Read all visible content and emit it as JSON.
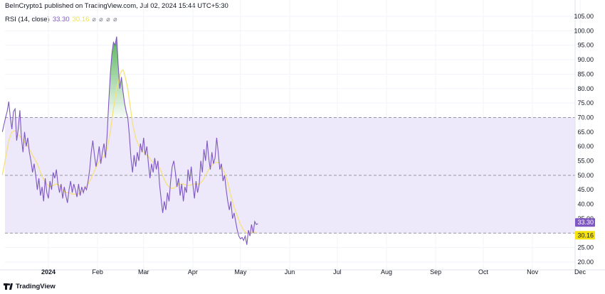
{
  "header": {
    "publisher_line": "BeInCrypto1 published on TradingView.com, Jul 02, 2024 15:44 UTC+5:30",
    "indicator_name": "RSI (14, close)",
    "rsi_value": "33.30",
    "ma_value": "30.16",
    "visibility_icons": "⌀ ⌀ ⌀ ⌀"
  },
  "footer": {
    "brand": "TradingView"
  },
  "colors": {
    "rsi_line": "#7e57c2",
    "ma_line": "#f7e17a",
    "band_fill": "#ede8fa",
    "overbought_fill": "#4caf50",
    "rsi_badge": "#7e57c2",
    "ma_badge": "#f5e30d",
    "dashed_line": "#9598a1"
  },
  "chart_data": {
    "type": "line",
    "ylim": [
      20,
      105
    ],
    "y_ticks": [
      "105.00",
      "100.00",
      "95.00",
      "90.00",
      "85.00",
      "80.00",
      "75.00",
      "70.00",
      "65.00",
      "60.00",
      "55.00",
      "50.00",
      "45.00",
      "40.00",
      "35.00",
      "25.00",
      "20.00"
    ],
    "x_tick_labels": [
      "2024",
      "Feb",
      "Mar",
      "Apr",
      "May",
      "Jun",
      "Jul",
      "Aug",
      "Sep",
      "Oct",
      "Nov",
      "Dec"
    ],
    "levels": {
      "upper": 70,
      "middle": 50,
      "lower": 30
    },
    "last_values": {
      "rsi": "33.30",
      "ma": "30.16"
    },
    "series": [
      {
        "name": "RSI (14, close)",
        "points": [
          [
            -29,
            65
          ],
          [
            -27,
            70
          ],
          [
            -26,
            72
          ],
          [
            -25,
            75.5
          ],
          [
            -24,
            70
          ],
          [
            -23,
            66
          ],
          [
            -22,
            72
          ],
          [
            -21,
            73
          ],
          [
            -20,
            62
          ],
          [
            -19,
            66
          ],
          [
            -18,
            72.5
          ],
          [
            -17,
            63
          ],
          [
            -16,
            58
          ],
          [
            -15,
            65
          ],
          [
            -14,
            60
          ],
          [
            -13,
            63
          ],
          [
            -12,
            58
          ],
          [
            -11,
            55
          ],
          [
            -10,
            51
          ],
          [
            -9,
            54
          ],
          [
            -8,
            50
          ],
          [
            -7,
            45
          ],
          [
            -6,
            49
          ],
          [
            -5,
            43
          ],
          [
            -4,
            46
          ],
          [
            -3,
            41
          ],
          [
            -2,
            49
          ],
          [
            -1,
            44
          ],
          [
            0,
            42
          ],
          [
            1,
            48
          ],
          [
            2,
            45
          ],
          [
            3,
            51
          ],
          [
            4,
            49
          ],
          [
            5,
            52
          ],
          [
            6,
            47
          ],
          [
            7,
            44
          ],
          [
            8,
            47
          ],
          [
            9,
            42
          ],
          [
            10,
            46
          ],
          [
            11,
            43
          ],
          [
            12,
            40.5
          ],
          [
            13,
            45
          ],
          [
            14,
            48
          ],
          [
            15,
            44
          ],
          [
            16,
            47
          ],
          [
            17,
            45
          ],
          [
            18,
            42.5
          ],
          [
            19,
            47
          ],
          [
            20,
            43
          ],
          [
            21,
            46
          ],
          [
            22,
            44
          ],
          [
            23,
            46
          ],
          [
            24,
            45
          ],
          [
            25,
            48
          ],
          [
            26,
            52
          ],
          [
            27,
            58
          ],
          [
            28,
            62
          ],
          [
            29,
            57
          ],
          [
            30,
            53
          ],
          [
            31,
            56
          ],
          [
            32,
            60
          ],
          [
            33,
            54
          ],
          [
            34,
            58
          ],
          [
            35,
            61
          ],
          [
            36,
            56
          ],
          [
            37,
            64
          ],
          [
            38,
            75
          ],
          [
            39,
            85
          ],
          [
            40,
            92
          ],
          [
            41,
            96
          ],
          [
            42,
            95
          ],
          [
            43,
            98
          ],
          [
            44,
            88
          ],
          [
            45,
            80
          ],
          [
            46,
            84
          ],
          [
            47,
            79
          ],
          [
            48,
            75
          ],
          [
            49,
            72
          ],
          [
            50,
            70
          ],
          [
            51,
            64
          ],
          [
            52,
            56
          ],
          [
            53,
            51
          ],
          [
            54,
            57
          ],
          [
            55,
            53
          ],
          [
            56,
            58
          ],
          [
            57,
            55
          ],
          [
            58,
            61
          ],
          [
            59,
            58
          ],
          [
            60,
            63
          ],
          [
            61,
            57
          ],
          [
            62,
            60
          ],
          [
            63,
            54
          ],
          [
            64,
            49
          ],
          [
            65,
            54
          ],
          [
            66,
            51
          ],
          [
            67,
            56
          ],
          [
            68,
            52
          ],
          [
            69,
            55
          ],
          [
            70,
            47
          ],
          [
            71,
            42
          ],
          [
            72,
            37
          ],
          [
            73,
            41
          ],
          [
            74,
            38
          ],
          [
            75,
            44
          ],
          [
            76,
            41
          ],
          [
            77,
            48
          ],
          [
            78,
            53
          ],
          [
            79,
            55
          ],
          [
            80,
            51
          ],
          [
            81,
            46
          ],
          [
            82,
            49
          ],
          [
            83,
            43
          ],
          [
            84,
            47
          ],
          [
            85,
            41
          ],
          [
            86,
            46
          ],
          [
            87,
            44
          ],
          [
            88,
            52
          ],
          [
            89,
            48
          ],
          [
            90,
            53
          ],
          [
            91,
            47
          ],
          [
            92,
            42
          ],
          [
            93,
            48
          ],
          [
            94,
            44
          ],
          [
            95,
            47
          ],
          [
            96,
            55
          ],
          [
            97,
            51
          ],
          [
            98,
            59
          ],
          [
            99,
            55
          ],
          [
            100,
            62
          ],
          [
            101,
            56
          ],
          [
            102,
            52
          ],
          [
            103,
            58
          ],
          [
            104,
            54
          ],
          [
            105,
            56
          ],
          [
            106,
            63
          ],
          [
            107,
            58
          ],
          [
            108,
            52
          ],
          [
            109,
            54
          ],
          [
            110,
            48
          ],
          [
            111,
            50
          ],
          [
            112,
            45
          ],
          [
            113,
            41
          ],
          [
            114,
            38
          ],
          [
            115,
            41
          ],
          [
            116,
            35
          ],
          [
            117,
            37
          ],
          [
            118,
            34
          ],
          [
            119,
            31
          ],
          [
            120,
            29
          ],
          [
            121,
            28
          ],
          [
            122,
            28.5
          ],
          [
            123,
            27.5
          ],
          [
            124,
            29
          ],
          [
            125,
            26
          ],
          [
            126,
            31
          ],
          [
            127,
            29
          ],
          [
            128,
            33
          ],
          [
            129,
            30
          ],
          [
            130,
            34
          ],
          [
            131,
            33
          ],
          [
            132,
            33.3
          ]
        ]
      },
      {
        "name": "RSI-based MA",
        "points": [
          [
            -29,
            50
          ],
          [
            -27,
            56
          ],
          [
            -25,
            62
          ],
          [
            -23,
            65
          ],
          [
            -21,
            65.5
          ],
          [
            -19,
            64
          ],
          [
            -17,
            63
          ],
          [
            -15,
            61.5
          ],
          [
            -13,
            60
          ],
          [
            -11,
            58
          ],
          [
            -9,
            56
          ],
          [
            -7,
            54
          ],
          [
            -5,
            51
          ],
          [
            -3,
            48.5
          ],
          [
            -1,
            47
          ],
          [
            1,
            46
          ],
          [
            3,
            46.5
          ],
          [
            5,
            47
          ],
          [
            7,
            46.5
          ],
          [
            9,
            45
          ],
          [
            11,
            44
          ],
          [
            13,
            44
          ],
          [
            15,
            43.5
          ],
          [
            17,
            43.5
          ],
          [
            19,
            43.5
          ],
          [
            21,
            44.5
          ],
          [
            23,
            45.5
          ],
          [
            25,
            47
          ],
          [
            27,
            49
          ],
          [
            29,
            51.5
          ],
          [
            31,
            54
          ],
          [
            33,
            55.5
          ],
          [
            35,
            56.5
          ],
          [
            37,
            59
          ],
          [
            39,
            65
          ],
          [
            41,
            73
          ],
          [
            43,
            80
          ],
          [
            45,
            84.5
          ],
          [
            46,
            86
          ],
          [
            47,
            86.5
          ],
          [
            48,
            85
          ],
          [
            49,
            82.5
          ],
          [
            50,
            80
          ],
          [
            51,
            76
          ],
          [
            52,
            72
          ],
          [
            53,
            68
          ],
          [
            55,
            63
          ],
          [
            57,
            60
          ],
          [
            59,
            58.5
          ],
          [
            61,
            57.5
          ],
          [
            63,
            56.5
          ],
          [
            65,
            55
          ],
          [
            67,
            54
          ],
          [
            69,
            53.5
          ],
          [
            71,
            51.5
          ],
          [
            73,
            48.5
          ],
          [
            75,
            46.5
          ],
          [
            77,
            45.5
          ],
          [
            79,
            45.5
          ],
          [
            81,
            46.5
          ],
          [
            83,
            47
          ],
          [
            85,
            47
          ],
          [
            87,
            46.5
          ],
          [
            89,
            46.5
          ],
          [
            91,
            47
          ],
          [
            93,
            47
          ],
          [
            95,
            47
          ],
          [
            97,
            48
          ],
          [
            99,
            50
          ],
          [
            101,
            52
          ],
          [
            103,
            53.5
          ],
          [
            105,
            54.5
          ],
          [
            107,
            54.5
          ],
          [
            109,
            53
          ],
          [
            111,
            51
          ],
          [
            113,
            47.5
          ],
          [
            115,
            43
          ],
          [
            117,
            39
          ],
          [
            119,
            36
          ],
          [
            121,
            33
          ],
          [
            123,
            31
          ],
          [
            125,
            30
          ],
          [
            127,
            30
          ],
          [
            129,
            30.5
          ],
          [
            131,
            30.16
          ]
        ]
      }
    ]
  }
}
